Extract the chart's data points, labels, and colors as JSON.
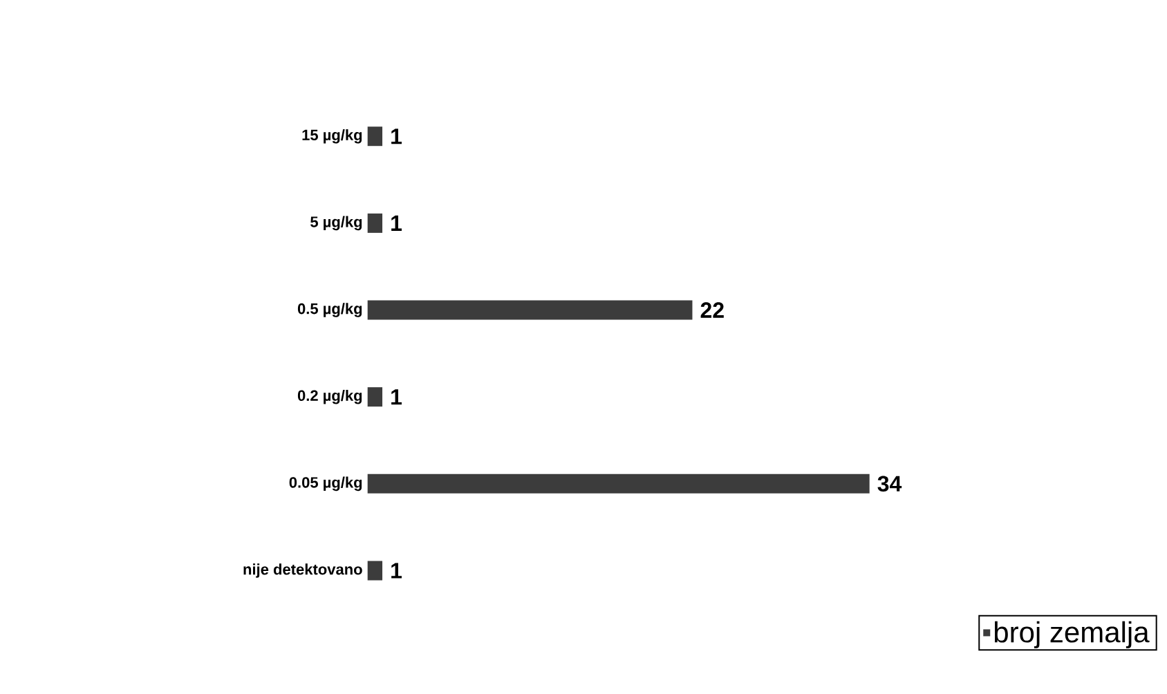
{
  "chart_data": {
    "type": "bar",
    "orientation": "horizontal",
    "categories": [
      "15 µg/kg",
      "5 µg/kg",
      "0.5 µg/kg",
      "0.2 µg/kg",
      "0.05 µg/kg",
      "nije detektovano"
    ],
    "series": [
      {
        "name": "broj zemalja",
        "color": "#3c3c3c",
        "values": [
          1,
          1,
          22,
          1,
          34,
          1
        ]
      }
    ],
    "tick_labels": "y",
    "data_labels": true,
    "legend": "bottom right",
    "grid": false
  }
}
